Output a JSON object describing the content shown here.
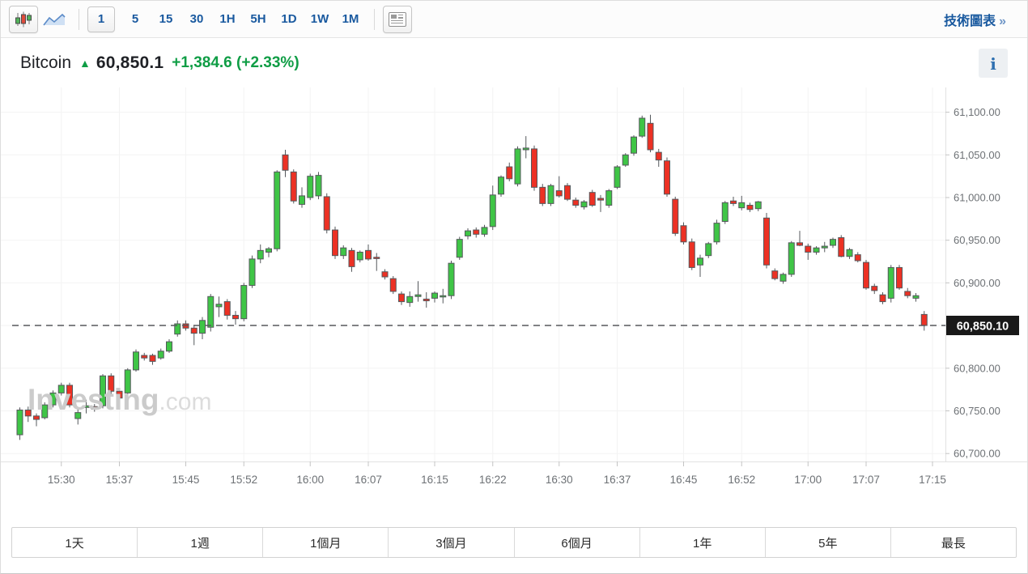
{
  "toolbar": {
    "chart_type_buttons": [
      {
        "name": "candlestick",
        "selected": true
      },
      {
        "name": "area",
        "selected": false
      }
    ],
    "intervals": [
      {
        "label": "1",
        "selected": true
      },
      {
        "label": "5",
        "selected": false
      },
      {
        "label": "15",
        "selected": false
      },
      {
        "label": "30",
        "selected": false
      },
      {
        "label": "1H",
        "selected": false
      },
      {
        "label": "5H",
        "selected": false
      },
      {
        "label": "1D",
        "selected": false
      },
      {
        "label": "1W",
        "selected": false
      },
      {
        "label": "1M",
        "selected": false
      }
    ],
    "technical_chart_link": "技術圖表",
    "technical_chart_arrow": "»"
  },
  "header": {
    "symbol": "Bitcoin",
    "arrow": "▲",
    "price": "60,850.1",
    "change": "+1,384.6",
    "change_pct": "(+2.33%)",
    "info_icon": "i"
  },
  "watermark": {
    "bold": "Investing",
    "light": ".com"
  },
  "colors": {
    "accent_blue": "#19599f",
    "up_green": "#0f9d45",
    "candle_green": "#3fc546",
    "candle_red": "#ec3124",
    "candle_outline": "#55585c",
    "axis_text": "#6d7175",
    "badge_bg": "#191919",
    "badge_text": "#ffffff"
  },
  "range_buttons": [
    "1天",
    "1週",
    "1個月",
    "3個月",
    "6個月",
    "1年",
    "5年",
    "最長"
  ],
  "chart_data": {
    "type": "candlestick",
    "title": "Bitcoin 1-minute candlestick chart",
    "start_time": "15:25",
    "interval_min": 1,
    "current_price": 60850.1,
    "current_price_label": "60,850.10",
    "ylim": [
      60690,
      61127
    ],
    "grid": true,
    "y_axis_side": "right",
    "y_ticks": [
      {
        "value": 61100,
        "label": "61,100.00"
      },
      {
        "value": 61050,
        "label": "61,050.00"
      },
      {
        "value": 61000,
        "label": "61,000.00"
      },
      {
        "value": 60950,
        "label": "60,950.00"
      },
      {
        "value": 60900,
        "label": "60,900.00"
      },
      {
        "value": 60850,
        "label": ""
      },
      {
        "value": 60800,
        "label": "60,800.00"
      },
      {
        "value": 60750,
        "label": "60,750.00"
      },
      {
        "value": 60700,
        "label": "60,700.00"
      }
    ],
    "x_ticks": [
      {
        "minute": 5,
        "label": "15:30"
      },
      {
        "minute": 12,
        "label": "15:37"
      },
      {
        "minute": 20,
        "label": "15:45"
      },
      {
        "minute": 27,
        "label": "15:52"
      },
      {
        "minute": 35,
        "label": "16:00"
      },
      {
        "minute": 42,
        "label": "16:07"
      },
      {
        "minute": 50,
        "label": "16:15"
      },
      {
        "minute": 57,
        "label": "16:22"
      },
      {
        "minute": 65,
        "label": "16:30"
      },
      {
        "minute": 72,
        "label": "16:37"
      },
      {
        "minute": 80,
        "label": "16:45"
      },
      {
        "minute": 87,
        "label": "16:52"
      },
      {
        "minute": 95,
        "label": "17:00"
      },
      {
        "minute": 102,
        "label": "17:07"
      },
      {
        "minute": 110,
        "label": "17:15"
      }
    ],
    "candles_format": [
      "open",
      "high",
      "low",
      "close"
    ],
    "candles": [
      [
        60722,
        60754,
        60716,
        60751
      ],
      [
        60751,
        60755,
        60737,
        60744
      ],
      [
        60744,
        60747,
        60732,
        60740
      ],
      [
        60742,
        60760,
        60740,
        60757
      ],
      [
        60757,
        60774,
        60754,
        60771
      ],
      [
        60771,
        60783,
        60768,
        60780
      ],
      [
        60780,
        60783,
        60754,
        60757
      ],
      [
        60741,
        60752,
        60734,
        60748
      ],
      [
        60754,
        60763,
        60747,
        60756
      ],
      [
        60755,
        60758,
        60749,
        60752
      ],
      [
        60756,
        60793,
        60753,
        60791
      ],
      [
        60791,
        60794,
        60770,
        60773
      ],
      [
        60773,
        60776,
        60757,
        60765
      ],
      [
        60771,
        60800,
        60768,
        60798
      ],
      [
        60798,
        60822,
        60796,
        60819
      ],
      [
        60815,
        60818,
        60809,
        60812
      ],
      [
        60815,
        60817,
        60804,
        60808
      ],
      [
        60812,
        60823,
        60810,
        60820
      ],
      [
        60820,
        60834,
        60818,
        60831
      ],
      [
        60840,
        60856,
        60837,
        60852
      ],
      [
        60852,
        60856,
        60844,
        60847
      ],
      [
        60847,
        60850,
        60827,
        60841
      ],
      [
        60841,
        60860,
        60834,
        60856
      ],
      [
        60848,
        60887,
        60843,
        60884
      ],
      [
        60872,
        60884,
        60860,
        60875
      ],
      [
        60878,
        60881,
        60857,
        60862
      ],
      [
        60862,
        60867,
        60851,
        60858
      ],
      [
        60858,
        60900,
        60855,
        60897
      ],
      [
        60897,
        60932,
        60894,
        60928
      ],
      [
        60928,
        60945,
        60923,
        60938
      ],
      [
        60936,
        60942,
        60930,
        60940
      ],
      [
        60940,
        61032,
        60937,
        61030
      ],
      [
        61050,
        61056,
        61024,
        61032
      ],
      [
        61030,
        61033,
        60993,
        60996
      ],
      [
        60992,
        61012,
        60988,
        61002
      ],
      [
        61000,
        61028,
        60997,
        61025
      ],
      [
        61002,
        61030,
        60998,
        61026
      ],
      [
        61001,
        61005,
        60958,
        60962
      ],
      [
        60962,
        60966,
        60928,
        60932
      ],
      [
        60932,
        60944,
        60928,
        60941
      ],
      [
        60938,
        60941,
        60913,
        60919
      ],
      [
        60927,
        60938,
        60924,
        60936
      ],
      [
        60938,
        60945,
        60926,
        60928
      ],
      [
        60930,
        60935,
        60914,
        60929
      ],
      [
        60913,
        60916,
        60904,
        60907
      ],
      [
        60905,
        60908,
        60887,
        60890
      ],
      [
        60887,
        60890,
        60874,
        60878
      ],
      [
        60877,
        60890,
        60872,
        60884
      ],
      [
        60884,
        60902,
        60878,
        60886
      ],
      [
        60881,
        60889,
        60871,
        60879
      ],
      [
        60882,
        60890,
        60877,
        60888
      ],
      [
        60884,
        60893,
        60876,
        60885
      ],
      [
        60885,
        60926,
        60881,
        60923
      ],
      [
        60930,
        60954,
        60927,
        60951
      ],
      [
        60955,
        60964,
        60951,
        60961
      ],
      [
        60962,
        60965,
        60953,
        60957
      ],
      [
        60957,
        60968,
        60954,
        60965
      ],
      [
        60966,
        61014,
        60962,
        61003
      ],
      [
        61004,
        61026,
        61001,
        61024
      ],
      [
        61036,
        61041,
        61019,
        61022
      ],
      [
        61016,
        61060,
        61013,
        61057
      ],
      [
        61056,
        61072,
        61046,
        61058
      ],
      [
        61057,
        61061,
        61008,
        61012
      ],
      [
        61012,
        61016,
        60990,
        60993
      ],
      [
        60993,
        61016,
        60990,
        61014
      ],
      [
        61008,
        61025,
        61000,
        61002
      ],
      [
        61014,
        61017,
        60996,
        60998
      ],
      [
        60997,
        61000,
        60988,
        60991
      ],
      [
        60989,
        60997,
        60986,
        60995
      ],
      [
        61006,
        61009,
        60989,
        60991
      ],
      [
        60999,
        61003,
        60983,
        60997
      ],
      [
        60991,
        61010,
        60988,
        61008
      ],
      [
        61012,
        61038,
        61010,
        61036
      ],
      [
        61038,
        61052,
        61036,
        61050
      ],
      [
        61052,
        61073,
        61049,
        61071
      ],
      [
        61072,
        61096,
        61070,
        61093
      ],
      [
        61087,
        61097,
        61053,
        61056
      ],
      [
        61053,
        61057,
        61036,
        61044
      ],
      [
        61043,
        61047,
        61001,
        61004
      ],
      [
        60998,
        61001,
        60955,
        60958
      ],
      [
        60967,
        60971,
        60945,
        60948
      ],
      [
        60948,
        60952,
        60915,
        60918
      ],
      [
        60921,
        60933,
        60907,
        60929
      ],
      [
        60932,
        60948,
        60929,
        60946
      ],
      [
        60948,
        60974,
        60945,
        60970
      ],
      [
        60972,
        60996,
        60969,
        60994
      ],
      [
        60996,
        61001,
        60990,
        60993
      ],
      [
        60988,
        61002,
        60985,
        60994
      ],
      [
        60991,
        60994,
        60983,
        60986
      ],
      [
        60987,
        60996,
        60984,
        60995
      ],
      [
        60976,
        60982,
        60917,
        60921
      ],
      [
        60914,
        60917,
        60903,
        60905
      ],
      [
        60902,
        60912,
        60899,
        60910
      ],
      [
        60910,
        60949,
        60907,
        60947
      ],
      [
        60947,
        60961,
        60943,
        60944
      ],
      [
        60943,
        60946,
        60927,
        60936
      ],
      [
        60936,
        60943,
        60933,
        60941
      ],
      [
        60941,
        60948,
        60936,
        60943
      ],
      [
        60944,
        60953,
        60941,
        60951
      ],
      [
        60953,
        60956,
        60930,
        60931
      ],
      [
        60931,
        60941,
        60928,
        60939
      ],
      [
        60933,
        60936,
        60924,
        60926
      ],
      [
        60924,
        60927,
        60892,
        60894
      ],
      [
        60896,
        60899,
        60887,
        60891
      ],
      [
        60886,
        60889,
        60875,
        60878
      ],
      [
        60882,
        60921,
        60877,
        60918
      ],
      [
        60918,
        60921,
        60892,
        60894
      ],
      [
        60890,
        60894,
        60882,
        60885
      ],
      [
        60882,
        60888,
        60878,
        60885
      ],
      [
        60863,
        60867,
        60844,
        60850.1
      ]
    ]
  }
}
